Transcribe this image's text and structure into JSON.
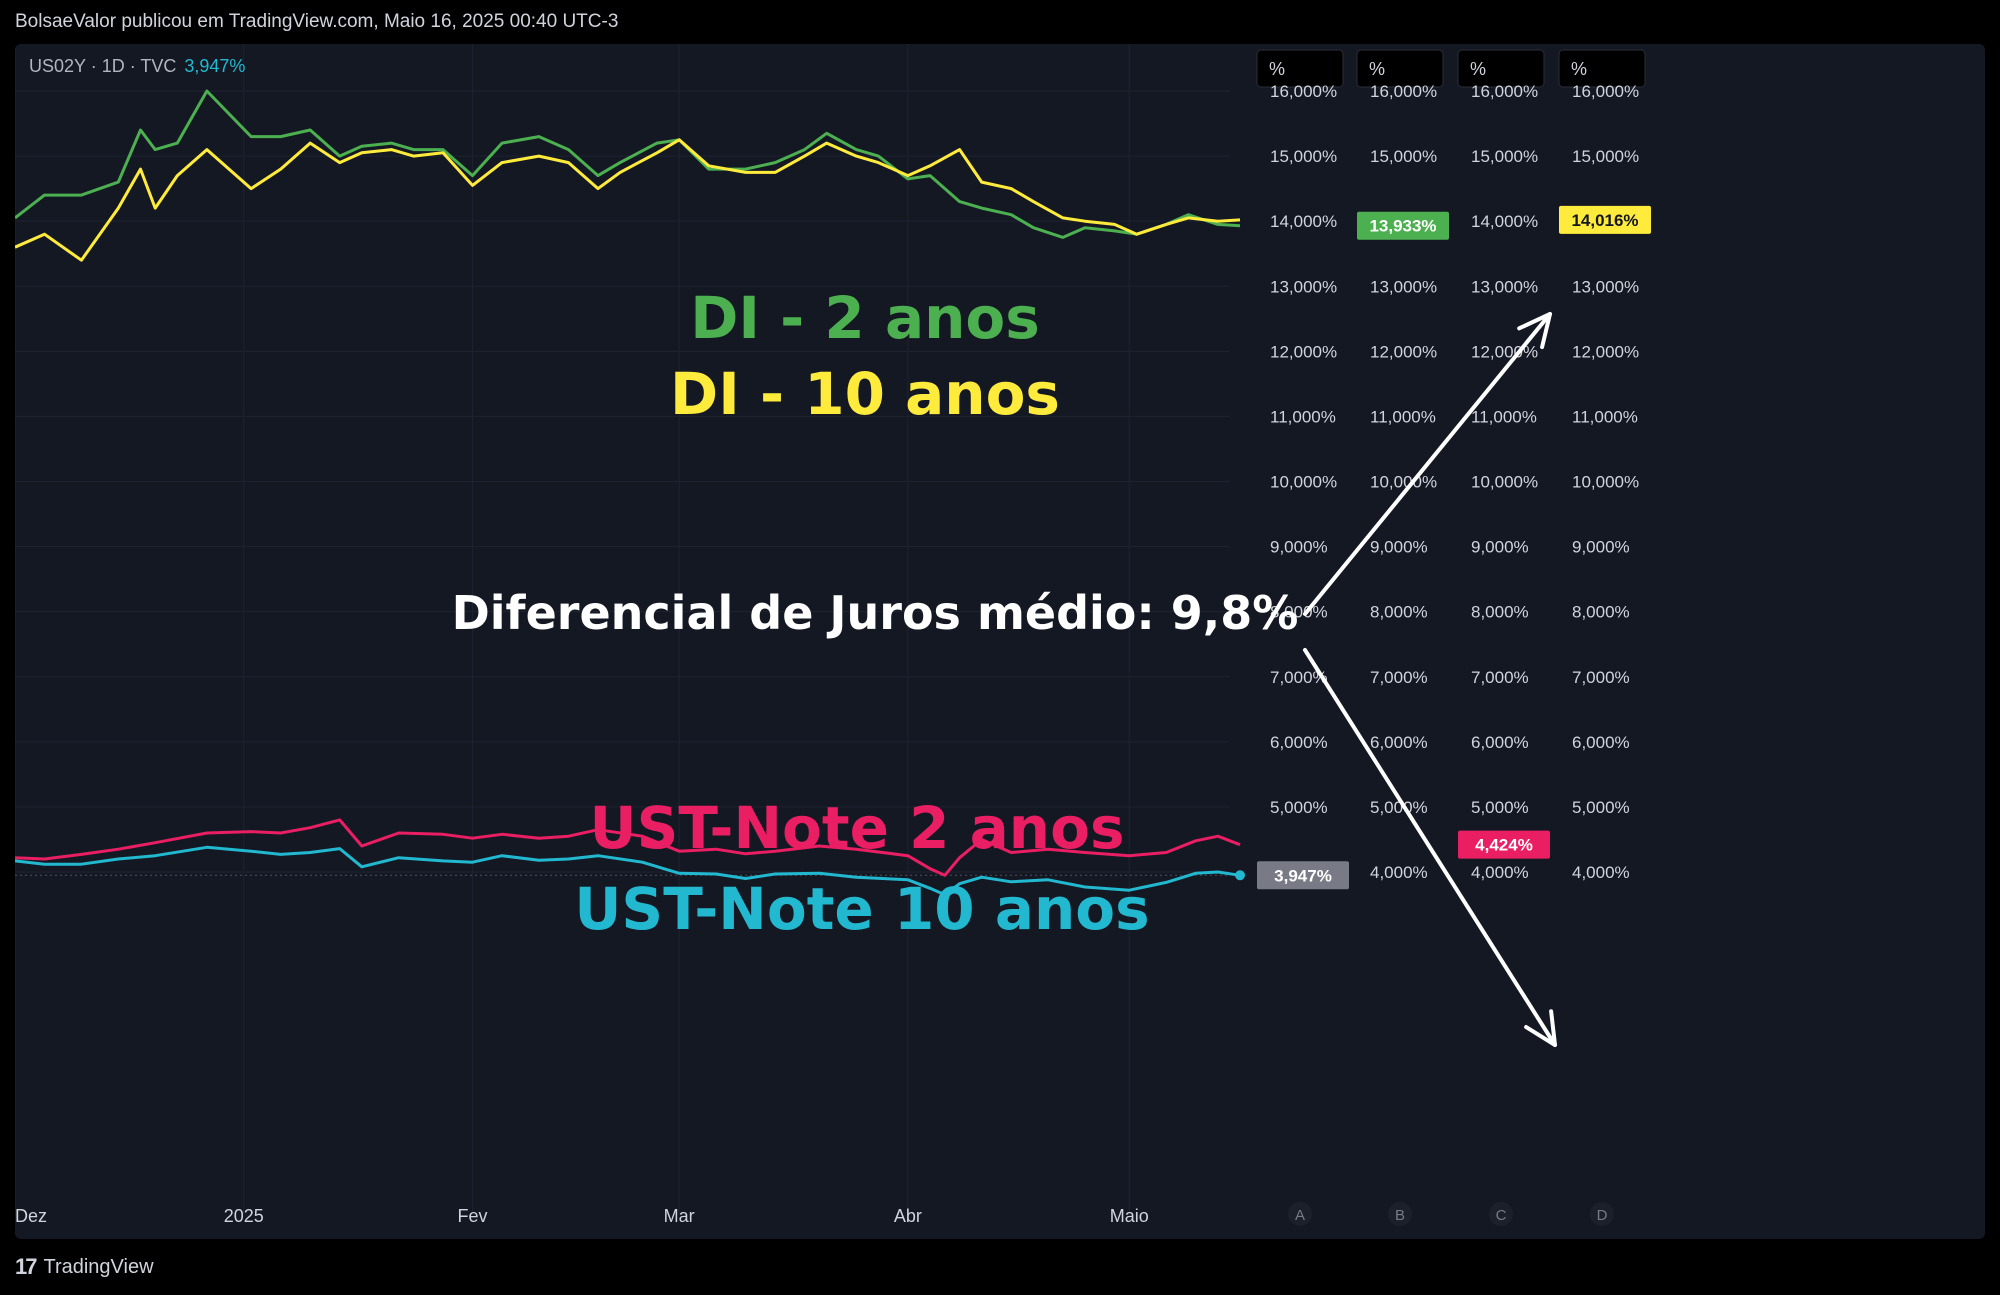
{
  "header": {
    "publish_line": "BolsaeValor publicou em TradingView.com, Maio 16, 2025 00:40 UTC-3"
  },
  "legend": {
    "symbol_line": "US02Y · 1D · TVC",
    "value": "3,947%"
  },
  "footer": {
    "brand": "TradingView"
  },
  "colors": {
    "di2": "#4caf50",
    "di10": "#ffeb3b",
    "ust2": "#e91e63",
    "ust10": "#22b8cf",
    "background": "#141823",
    "annotation": "#ffffff"
  },
  "annotations": {
    "di2_label": "DI - 2 anos",
    "di10_label": "DI - 10 anos",
    "spread_label": "Diferencial de Juros médio: 9,8%",
    "ust2_label": "UST-Note 2 anos",
    "ust10_label": "UST-Note 10 anos"
  },
  "chart_data": {
    "type": "line",
    "x_axis": {
      "start": "2024-12-01",
      "end": "2025-05-16",
      "tick_labels": [
        "Dez",
        "2025",
        "Fev",
        "Mar",
        "Abr",
        "Maio"
      ]
    },
    "y_axis": {
      "unit": "%",
      "range": [
        4.0,
        16.0
      ],
      "tick_labels": [
        "16,000%",
        "15,000%",
        "14,000%",
        "13,000%",
        "12,000%",
        "11,000%",
        "10,000%",
        "9,000%",
        "8,000%",
        "7,000%",
        "6,000%",
        "5,000%",
        "4,000%"
      ]
    },
    "price_scales": [
      {
        "id": "A",
        "header": "%",
        "last_value_label": "3,947%",
        "label_color": "#787b86"
      },
      {
        "id": "B",
        "header": "%",
        "last_value_label": "13,933%",
        "label_color": "#4caf50"
      },
      {
        "id": "C",
        "header": "%",
        "last_value_label": "4,424%",
        "label_color": "#e91e63"
      },
      {
        "id": "D",
        "header": "%",
        "last_value_label": "14,016%",
        "label_color": "#ffeb3b"
      }
    ],
    "series": [
      {
        "name": "DI - 2 anos",
        "color": "#4caf50",
        "x": [
          "2024-12-01",
          "2024-12-05",
          "2024-12-10",
          "2024-12-15",
          "2024-12-18",
          "2024-12-20",
          "2024-12-23",
          "2024-12-27",
          "2025-01-02",
          "2025-01-06",
          "2025-01-10",
          "2025-01-14",
          "2025-01-17",
          "2025-01-21",
          "2025-01-24",
          "2025-01-28",
          "2025-02-01",
          "2025-02-05",
          "2025-02-10",
          "2025-02-14",
          "2025-02-18",
          "2025-02-21",
          "2025-02-26",
          "2025-03-01",
          "2025-03-05",
          "2025-03-10",
          "2025-03-14",
          "2025-03-18",
          "2025-03-21",
          "2025-03-25",
          "2025-03-28",
          "2025-04-01",
          "2025-04-04",
          "2025-04-08",
          "2025-04-11",
          "2025-04-15",
          "2025-04-18",
          "2025-04-22",
          "2025-04-25",
          "2025-04-29",
          "2025-05-02",
          "2025-05-06",
          "2025-05-09",
          "2025-05-13",
          "2025-05-16"
        ],
        "y": [
          14.05,
          14.4,
          14.4,
          14.6,
          15.4,
          15.1,
          15.2,
          16.0,
          15.3,
          15.3,
          15.4,
          15.0,
          15.15,
          15.2,
          15.1,
          15.1,
          14.7,
          15.2,
          15.3,
          15.1,
          14.7,
          14.9,
          15.2,
          15.25,
          14.8,
          14.8,
          14.9,
          15.1,
          15.35,
          15.1,
          15.0,
          14.65,
          14.7,
          14.3,
          14.2,
          14.1,
          13.9,
          13.75,
          13.9,
          13.85,
          13.8,
          13.95,
          14.1,
          13.95,
          13.93
        ]
      },
      {
        "name": "DI - 10 anos",
        "color": "#ffeb3b",
        "x": [
          "2024-12-01",
          "2024-12-05",
          "2024-12-10",
          "2024-12-15",
          "2024-12-18",
          "2024-12-20",
          "2024-12-23",
          "2024-12-27",
          "2025-01-02",
          "2025-01-06",
          "2025-01-10",
          "2025-01-14",
          "2025-01-17",
          "2025-01-21",
          "2025-01-24",
          "2025-01-28",
          "2025-02-01",
          "2025-02-05",
          "2025-02-10",
          "2025-02-14",
          "2025-02-18",
          "2025-02-21",
          "2025-02-26",
          "2025-03-01",
          "2025-03-05",
          "2025-03-10",
          "2025-03-14",
          "2025-03-18",
          "2025-03-21",
          "2025-03-25",
          "2025-03-28",
          "2025-04-01",
          "2025-04-04",
          "2025-04-08",
          "2025-04-11",
          "2025-04-15",
          "2025-04-18",
          "2025-04-22",
          "2025-04-25",
          "2025-04-29",
          "2025-05-02",
          "2025-05-06",
          "2025-05-09",
          "2025-05-13",
          "2025-05-16"
        ],
        "y": [
          13.6,
          13.8,
          13.4,
          14.2,
          14.8,
          14.2,
          14.7,
          15.1,
          14.5,
          14.8,
          15.2,
          14.9,
          15.05,
          15.1,
          15.0,
          15.05,
          14.55,
          14.9,
          15.0,
          14.9,
          14.5,
          14.75,
          15.05,
          15.25,
          14.85,
          14.75,
          14.75,
          15.0,
          15.2,
          15.0,
          14.9,
          14.7,
          14.85,
          15.1,
          14.6,
          14.5,
          14.3,
          14.05,
          14.0,
          13.95,
          13.8,
          13.95,
          14.05,
          14.0,
          14.02
        ]
      },
      {
        "name": "UST-Note 2 anos",
        "color": "#e91e63",
        "x": [
          "2024-12-01",
          "2024-12-05",
          "2024-12-10",
          "2024-12-15",
          "2024-12-20",
          "2024-12-27",
          "2025-01-02",
          "2025-01-06",
          "2025-01-10",
          "2025-01-14",
          "2025-01-17",
          "2025-01-22",
          "2025-01-28",
          "2025-02-01",
          "2025-02-05",
          "2025-02-10",
          "2025-02-14",
          "2025-02-18",
          "2025-02-24",
          "2025-03-01",
          "2025-03-06",
          "2025-03-10",
          "2025-03-14",
          "2025-03-20",
          "2025-03-25",
          "2025-04-01",
          "2025-04-04",
          "2025-04-06",
          "2025-04-08",
          "2025-04-11",
          "2025-04-15",
          "2025-04-20",
          "2025-04-25",
          "2025-05-01",
          "2025-05-06",
          "2025-05-10",
          "2025-05-13",
          "2025-05-16"
        ],
        "y": [
          4.22,
          4.2,
          4.27,
          4.35,
          4.45,
          4.6,
          4.62,
          4.6,
          4.68,
          4.8,
          4.4,
          4.6,
          4.58,
          4.52,
          4.58,
          4.52,
          4.55,
          4.65,
          4.55,
          4.32,
          4.35,
          4.28,
          4.32,
          4.4,
          4.35,
          4.25,
          4.05,
          3.95,
          4.22,
          4.5,
          4.3,
          4.35,
          4.3,
          4.25,
          4.3,
          4.48,
          4.55,
          4.42
        ]
      },
      {
        "name": "UST-Note 10 anos",
        "color": "#22b8cf",
        "x": [
          "2024-12-01",
          "2024-12-05",
          "2024-12-10",
          "2024-12-15",
          "2024-12-20",
          "2024-12-27",
          "2025-01-02",
          "2025-01-06",
          "2025-01-10",
          "2025-01-14",
          "2025-01-17",
          "2025-01-22",
          "2025-01-28",
          "2025-02-01",
          "2025-02-05",
          "2025-02-10",
          "2025-02-14",
          "2025-02-18",
          "2025-02-24",
          "2025-03-01",
          "2025-03-06",
          "2025-03-10",
          "2025-03-14",
          "2025-03-20",
          "2025-03-25",
          "2025-04-01",
          "2025-04-04",
          "2025-04-06",
          "2025-04-08",
          "2025-04-11",
          "2025-04-15",
          "2025-04-20",
          "2025-04-25",
          "2025-05-01",
          "2025-05-06",
          "2025-05-10",
          "2025-05-13",
          "2025-05-16"
        ],
        "y": [
          4.17,
          4.12,
          4.12,
          4.2,
          4.25,
          4.38,
          4.32,
          4.27,
          4.3,
          4.36,
          4.08,
          4.22,
          4.17,
          4.15,
          4.25,
          4.18,
          4.2,
          4.25,
          4.15,
          3.98,
          3.97,
          3.9,
          3.97,
          3.98,
          3.92,
          3.88,
          3.75,
          3.65,
          3.82,
          3.92,
          3.85,
          3.88,
          3.77,
          3.72,
          3.84,
          3.98,
          4.0,
          3.95
        ]
      }
    ]
  }
}
